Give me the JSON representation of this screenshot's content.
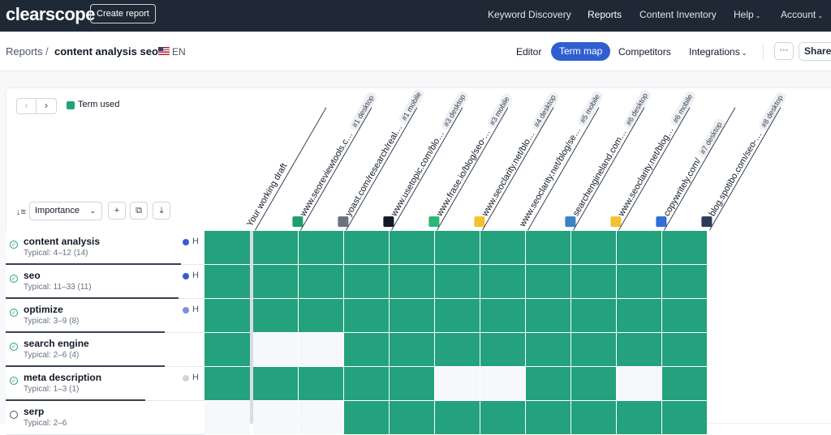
{
  "topbar": {
    "brand": "clearscope",
    "create_report": "Create report",
    "nav": [
      {
        "label": "Keyword Discovery",
        "active": false
      },
      {
        "label": "Reports",
        "active": true
      },
      {
        "label": "Content Inventory",
        "active": false
      },
      {
        "label": "Help",
        "active": false,
        "caret": "⌄"
      },
      {
        "label": "Account",
        "active": false,
        "caret": "⌄"
      }
    ]
  },
  "subbar": {
    "breadcrumb_root": "Reports",
    "breadcrumb_sep": "/",
    "report_title": "content analysis seo",
    "language": "EN",
    "tabs": [
      "Editor",
      "Term map",
      "Competitors",
      "Integrations"
    ],
    "active_tab": "Term map",
    "integrations_caret": "⌄",
    "more": "···",
    "share": "Share"
  },
  "toolbar": {
    "prev": "‹",
    "next": "›",
    "legend_label": "Term used",
    "sort_label": "Importance",
    "sort_caret": "⌄",
    "add": "+",
    "copy": "⧉",
    "download": "⤓",
    "sort_icon": "↓≡"
  },
  "colors": {
    "used": "#23a27d",
    "unused": "#f6f8fa",
    "accent": "#2f5fcf"
  },
  "columns": [
    {
      "label": "Your working draft",
      "badge": "",
      "logo": "none"
    },
    {
      "label": "www.seoreviewtools.c…",
      "badge": "#1 desktop",
      "logo": "seoreviewtools-logo",
      "logo_color": "#1e9e6d"
    },
    {
      "label": "yoast.com/research/real…",
      "badge": "#1 mobile",
      "logo": "yoast-logo",
      "logo_color": "#6b7280"
    },
    {
      "label": "www.usetopic.com/blo…",
      "badge": "#3 desktop",
      "logo": "usetopic-logo",
      "logo_color": "#111827"
    },
    {
      "label": "www.frase.io/blog/seo-…",
      "badge": "#3 mobile",
      "logo": "frase-logo",
      "logo_color": "#2bb673"
    },
    {
      "label": "www.seoclarity.net/blo…",
      "badge": "#4 desktop",
      "logo": "seoclarity-logo",
      "logo_color": "#f2c230"
    },
    {
      "label": "www.seoclarity.net/blog/se…",
      "badge": "#5 mobile",
      "logo": "none"
    },
    {
      "label": "searchengineland.com…",
      "badge": "#6 desktop",
      "logo": "searchengineland-logo",
      "logo_color": "#3b82c4"
    },
    {
      "label": "www.seoclarity.net/blog…",
      "badge": "#6 mobile",
      "logo": "seoclarity-logo",
      "logo_color": "#f2c230"
    },
    {
      "label": "copywritely.com/",
      "badge": "#7 desktop",
      "logo": "copywritely-logo",
      "logo_color": "#2f6fd6"
    },
    {
      "label": "blog.spotibo.com/seo-…",
      "badge": "#8 desktop",
      "logo": "spotibo-logo",
      "logo_color": "#2b3a55"
    }
  ],
  "rows": [
    {
      "term": "content analysis",
      "typical": "Typical: 4–12 (14)",
      "used": true,
      "importance": "H",
      "importance_color": "#3b5bcc",
      "progress": 0.88,
      "cells": [
        1,
        1,
        1,
        1,
        1,
        1,
        1,
        1,
        1,
        1,
        1
      ]
    },
    {
      "term": "seo",
      "typical": "Typical: 11–33 (11)",
      "used": true,
      "importance": "H",
      "importance_color": "#3b5bcc",
      "progress": 0.87,
      "cells": [
        1,
        1,
        1,
        1,
        1,
        1,
        1,
        1,
        1,
        1,
        1
      ]
    },
    {
      "term": "optimize",
      "typical": "Typical: 3–9 (8)",
      "used": true,
      "importance": "H",
      "importance_color": "#7c8fdc",
      "progress": 0.8,
      "cells": [
        1,
        1,
        1,
        1,
        1,
        1,
        1,
        1,
        1,
        1,
        1
      ]
    },
    {
      "term": "search engine",
      "typical": "Typical: 2–6 (4)",
      "used": true,
      "importance": "",
      "importance_color": "",
      "progress": 0.8,
      "cells": [
        1,
        0,
        0,
        1,
        1,
        1,
        1,
        1,
        1,
        1,
        1
      ]
    },
    {
      "term": "meta description",
      "typical": "Typical: 1–3 (1)",
      "used": true,
      "importance": "H",
      "importance_color": "#d1d5db",
      "progress": 0.7,
      "cells": [
        1,
        1,
        1,
        1,
        1,
        0,
        0,
        1,
        1,
        0,
        1
      ]
    },
    {
      "term": "serp",
      "typical": "Typical: 2–6",
      "used": false,
      "importance": "",
      "importance_color": "",
      "progress": 0,
      "cells": [
        0,
        0,
        0,
        1,
        1,
        1,
        1,
        1,
        1,
        1,
        1
      ]
    }
  ]
}
